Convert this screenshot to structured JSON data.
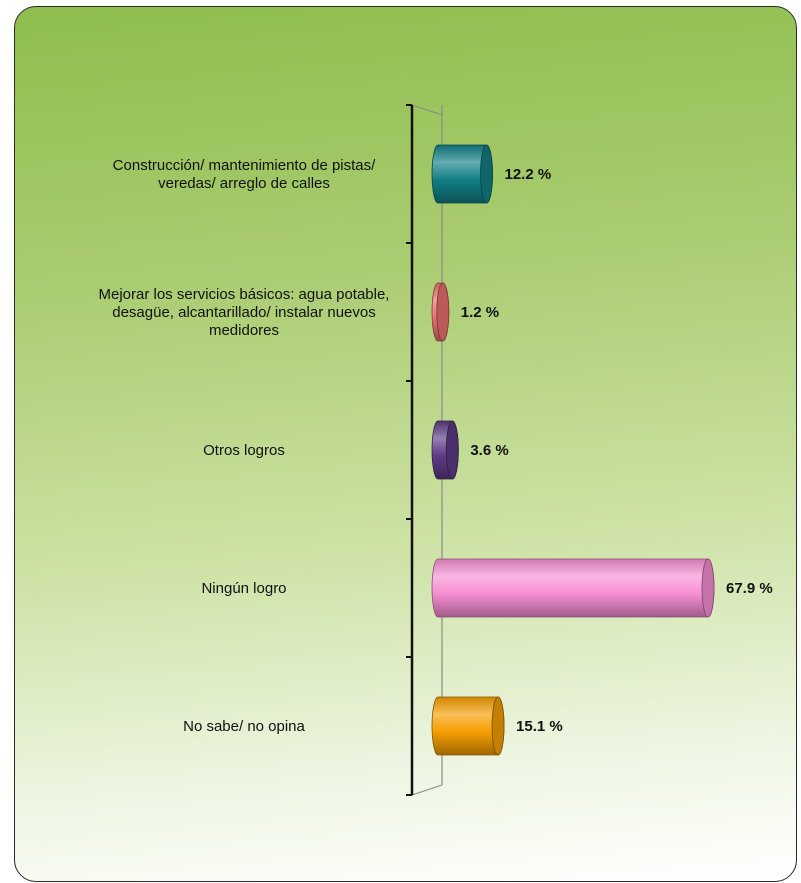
{
  "chart_data": {
    "type": "bar",
    "orientation": "horizontal",
    "style": "3d-cylinder",
    "categories": [
      [
        "Construcción/ mantenimiento de pistas/",
        "veredas/ arreglo de calles"
      ],
      [
        "Mejorar los servicios básicos: agua potable,",
        "desagüe, alcantarillado/ instalar nuevos",
        "medidores"
      ],
      [
        "Otros logros"
      ],
      [
        "Ningún logro"
      ],
      [
        "No sabe/ no opina"
      ]
    ],
    "values": [
      12.2,
      1.2,
      3.6,
      67.9,
      15.1
    ],
    "value_labels": [
      "12.2 %",
      "1.2 %",
      "3.6 %",
      "67.9 %",
      "15.1 %"
    ],
    "colors": [
      "#117f85",
      "#e8706f",
      "#5d3b86",
      "#f68ed2",
      "#f59e00"
    ],
    "xlim": [
      0,
      100
    ],
    "grid": false,
    "legend": "none"
  }
}
